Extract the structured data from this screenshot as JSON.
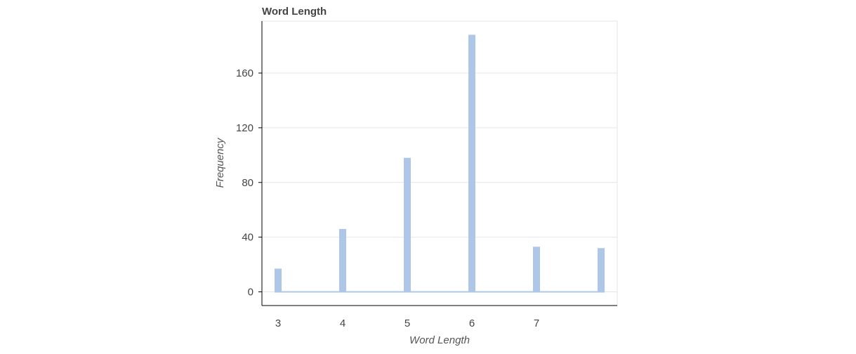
{
  "chart_data": {
    "type": "bar",
    "title": "Word Length",
    "xlabel": "Word Length",
    "ylabel": "Frequency",
    "x_ticks": [
      3,
      4,
      5,
      6,
      7
    ],
    "y_ticks": [
      0,
      40,
      80,
      120,
      160
    ],
    "xlim": [
      2.75,
      8.25
    ],
    "ylim": [
      -10,
      198
    ],
    "bins": [
      3,
      4,
      5,
      6,
      7,
      8
    ],
    "values": [
      17,
      46,
      98,
      188,
      33,
      32
    ],
    "baseline_value": 0,
    "grid": "horizontal",
    "bar_color": "#aec7e8",
    "axis_color": "#000000",
    "grid_color": "#e5e5e5"
  }
}
